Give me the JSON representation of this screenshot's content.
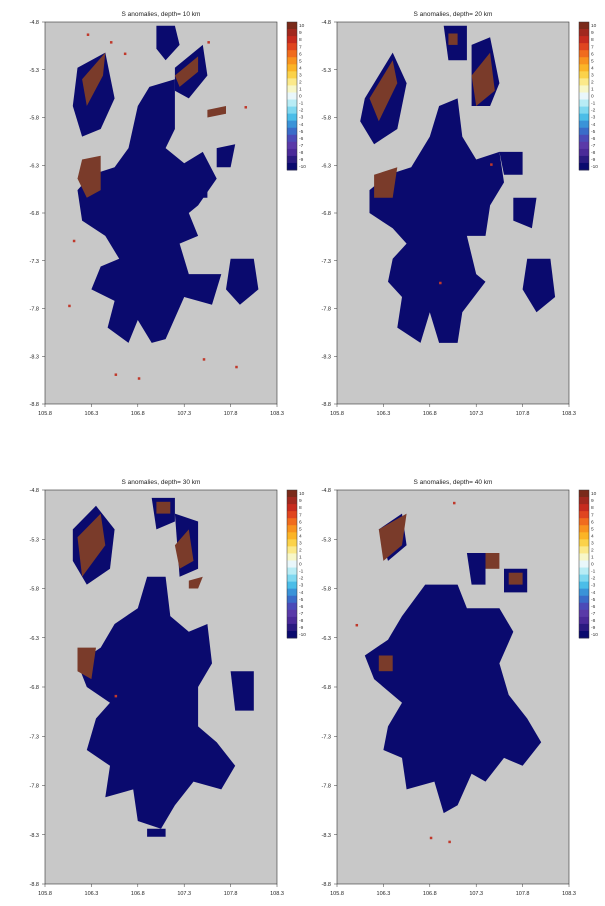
{
  "chart_data": [
    {
      "type": "heatmap",
      "title": "S anomalies, depth= 10 km",
      "x_ticks": [
        "105.8",
        "106.3",
        "106.8",
        "107.3",
        "107.8",
        "108.3"
      ],
      "y_ticks": [
        "-4.8",
        "-5.3",
        "-5.8",
        "-6.3",
        "-6.8",
        "-7.3",
        "-7.8",
        "-8.3",
        "-8.8"
      ],
      "xlim": [
        105.8,
        108.3
      ],
      "ylim": [
        -8.8,
        -4.8
      ],
      "colorbar": {
        "ticks": [
          "10",
          "9",
          "8",
          "7",
          "6",
          "5",
          "4",
          "3",
          "2",
          "1",
          "0",
          "-1",
          "-2",
          "-3",
          "-4",
          "-5",
          "-6",
          "-7",
          "-8",
          "-9",
          "-10"
        ],
        "range": [
          -10,
          10
        ]
      },
      "background_value": 0
    },
    {
      "type": "heatmap",
      "title": "S anomalies, depth= 20 km",
      "x_ticks": [
        "105.8",
        "106.3",
        "106.8",
        "107.3",
        "107.8",
        "108.3"
      ],
      "y_ticks": [
        "-4.8",
        "-5.3",
        "-5.8",
        "-6.3",
        "-6.8",
        "-7.3",
        "-7.8",
        "-8.3",
        "-8.8"
      ],
      "xlim": [
        105.8,
        108.3
      ],
      "ylim": [
        -8.8,
        -4.8
      ],
      "colorbar": {
        "ticks": [
          "10",
          "9",
          "8",
          "7",
          "6",
          "5",
          "4",
          "3",
          "2",
          "1",
          "0",
          "-1",
          "-2",
          "-3",
          "-4",
          "-5",
          "-6",
          "-7",
          "-8",
          "-9",
          "-10"
        ],
        "range": [
          -10,
          10
        ]
      },
      "background_value": 0
    },
    {
      "type": "heatmap",
      "title": "S anomalies, depth= 30 km",
      "x_ticks": [
        "105.8",
        "106.3",
        "106.8",
        "107.3",
        "107.8",
        "108.3"
      ],
      "y_ticks": [
        "-4.8",
        "-5.3",
        "-5.8",
        "-6.3",
        "-6.8",
        "-7.3",
        "-7.8",
        "-8.3",
        "-8.8"
      ],
      "xlim": [
        105.8,
        108.3
      ],
      "ylim": [
        -8.8,
        -4.8
      ],
      "colorbar": {
        "ticks": [
          "10",
          "9",
          "8",
          "7",
          "6",
          "5",
          "4",
          "3",
          "2",
          "1",
          "0",
          "-1",
          "-2",
          "-3",
          "-4",
          "-5",
          "-6",
          "-7",
          "-8",
          "-9",
          "-10"
        ],
        "range": [
          -10,
          10
        ]
      },
      "background_value": 0
    },
    {
      "type": "heatmap",
      "title": "S anomalies, depth= 40 km",
      "x_ticks": [
        "105.8",
        "106.3",
        "106.8",
        "107.3",
        "107.8",
        "108.3"
      ],
      "y_ticks": [
        "-4.8",
        "-5.3",
        "-5.8",
        "-6.3",
        "-6.8",
        "-7.3",
        "-7.8",
        "-8.3",
        "-8.8"
      ],
      "xlim": [
        105.8,
        108.3
      ],
      "ylim": [
        -8.8,
        -4.8
      ],
      "colorbar": {
        "ticks": [
          "10",
          "9",
          "8",
          "7",
          "6",
          "5",
          "4",
          "3",
          "2",
          "1",
          "0",
          "-1",
          "-2",
          "-3",
          "-4",
          "-5",
          "-6",
          "-7",
          "-8",
          "-9",
          "-10"
        ],
        "range": [
          -10,
          10
        ]
      },
      "background_value": 0
    }
  ],
  "colors": {
    "background_cell": "#c8c8c8",
    "negative_anomaly": "#0a0a6e",
    "positive_anomaly": "#7a3b2a",
    "axis": "#333333"
  }
}
